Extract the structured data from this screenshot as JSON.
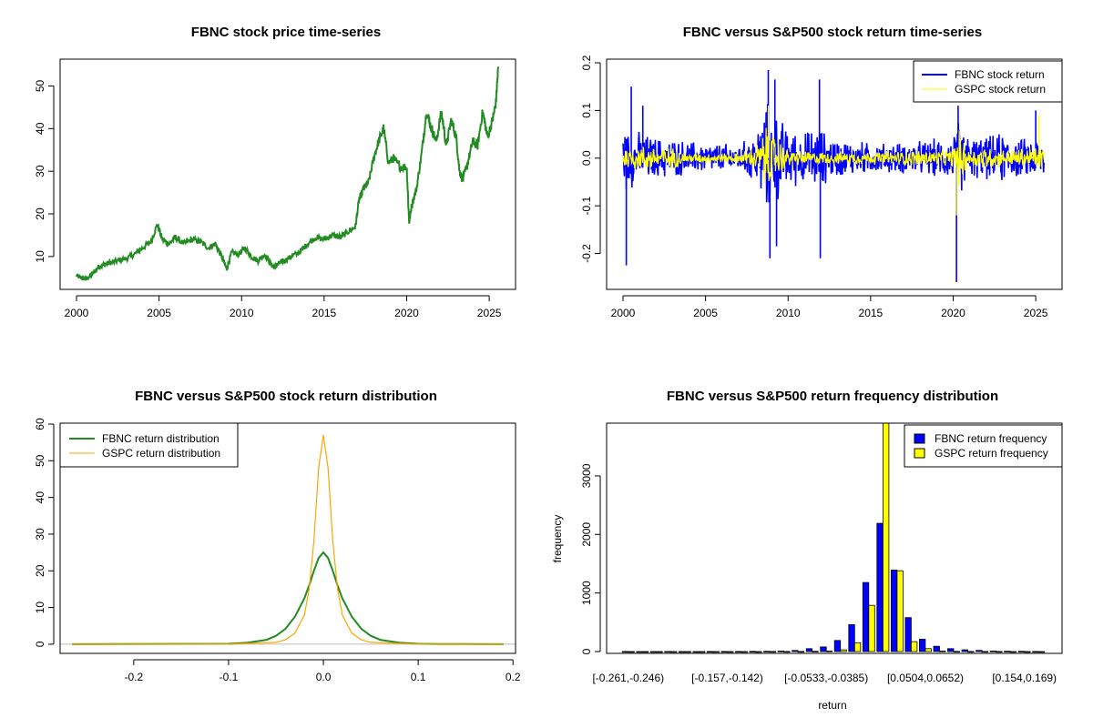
{
  "chart_data": [
    {
      "id": "price",
      "type": "line",
      "title": "FBNC stock price time-series",
      "xlabel": "",
      "ylabel": "",
      "xlim": [
        2000,
        2025.6
      ],
      "ylim": [
        4,
        55
      ],
      "xticks": [
        2000,
        2005,
        2010,
        2015,
        2020,
        2025
      ],
      "yticks": [
        10,
        20,
        30,
        40,
        50
      ],
      "grid": false,
      "colors": {
        "line": "#228B22"
      },
      "series": [
        {
          "x": [
            2000.0,
            2000.3,
            2000.6,
            2001.0,
            2001.3,
            2001.6,
            2002.0,
            2002.5,
            2003.0,
            2003.5,
            2004.0,
            2004.5,
            2004.9,
            2005.2,
            2005.6,
            2006.0,
            2006.5,
            2007.0,
            2007.5,
            2008.0,
            2008.4,
            2008.8,
            2009.1,
            2009.4,
            2009.8,
            2010.2,
            2010.6,
            2011.0,
            2011.4,
            2011.8,
            2012.0,
            2012.3,
            2012.6,
            2013.0,
            2013.5,
            2014.0,
            2014.5,
            2015.0,
            2015.5,
            2016.0,
            2016.5,
            2016.9,
            2017.1,
            2017.4,
            2017.7,
            2018.0,
            2018.3,
            2018.6,
            2018.9,
            2019.2,
            2019.6,
            2020.0,
            2020.15,
            2020.3,
            2020.6,
            2020.9,
            2021.2,
            2021.5,
            2021.8,
            2022.1,
            2022.4,
            2022.7,
            2023.0,
            2023.2,
            2023.4,
            2023.7,
            2024.0,
            2024.3,
            2024.6,
            2024.9,
            2025.2,
            2025.4,
            2025.55
          ],
          "y": [
            5.5,
            5.0,
            4.8,
            6.0,
            7.5,
            8.0,
            8.5,
            9.0,
            9.5,
            10.5,
            12.0,
            13.5,
            17.5,
            14.0,
            13.0,
            14.5,
            13.0,
            14.0,
            13.5,
            12.0,
            13.0,
            10.0,
            7.0,
            11.0,
            10.5,
            12.0,
            10.0,
            9.0,
            10.5,
            8.0,
            7.5,
            8.5,
            9.0,
            10.0,
            11.0,
            13.0,
            14.5,
            14.0,
            15.0,
            14.5,
            16.0,
            17.0,
            23.0,
            26.0,
            27.5,
            33.0,
            37.0,
            40.0,
            32.0,
            33.0,
            31.0,
            31.0,
            18.0,
            22.0,
            26.0,
            34.0,
            44.0,
            40.0,
            37.0,
            44.0,
            36.0,
            42.0,
            38.0,
            30.0,
            28.0,
            32.0,
            37.0,
            36.0,
            44.0,
            38.0,
            42.0,
            46.0,
            54.5
          ]
        }
      ]
    },
    {
      "id": "returns",
      "type": "line",
      "title": "FBNC versus S&P500 stock return time-series",
      "xlabel": "",
      "ylabel": "",
      "xlim": [
        2000,
        2025.6
      ],
      "ylim": [
        -0.26,
        0.2
      ],
      "xticks": [
        2000,
        2005,
        2010,
        2015,
        2020,
        2025
      ],
      "yticks": [
        -0.2,
        -0.1,
        0.0,
        0.1,
        0.2
      ],
      "ytick_labels": [
        "-0.2",
        "-0.1",
        "0.0",
        "0.1",
        "0.2"
      ],
      "grid": false,
      "legend": {
        "position": "top-right"
      },
      "series": [
        {
          "name": "FBNC stock return",
          "color": "#0000FF",
          "amplitude_profile": {
            "x": [
              2000,
              2001,
              2002,
              2003,
              2004,
              2005,
              2006,
              2007,
              2008,
              2008.7,
              2009.2,
              2010,
              2011,
              2011.8,
              2012.5,
              2014,
              2016,
              2018,
              2019.9,
              2020.3,
              2021,
              2022,
              2023,
              2024,
              2025.5
            ],
            "y": [
              0.08,
              0.06,
              0.05,
              0.045,
              0.04,
              0.035,
              0.035,
              0.03,
              0.06,
              0.13,
              0.11,
              0.07,
              0.06,
              0.08,
              0.05,
              0.04,
              0.035,
              0.04,
              0.05,
              0.09,
              0.05,
              0.05,
              0.06,
              0.045,
              0.05
            ]
          },
          "spikes": [
            {
              "x": 2000.2,
              "y": -0.225
            },
            {
              "x": 2000.5,
              "y": 0.15
            },
            {
              "x": 2001.2,
              "y": 0.11
            },
            {
              "x": 2008.8,
              "y": 0.185
            },
            {
              "x": 2008.9,
              "y": -0.21
            },
            {
              "x": 2009.2,
              "y": 0.165
            },
            {
              "x": 2009.3,
              "y": -0.185
            },
            {
              "x": 2011.9,
              "y": 0.165
            },
            {
              "x": 2011.95,
              "y": -0.21
            },
            {
              "x": 2020.2,
              "y": -0.26
            },
            {
              "x": 2020.3,
              "y": 0.11
            },
            {
              "x": 2025.0,
              "y": 0.1
            }
          ]
        },
        {
          "name": "GSPC stock return",
          "color": "#FFFF00",
          "amplitude_profile": {
            "x": [
              2000,
              2002,
              2003,
              2004,
              2007,
              2008,
              2008.8,
              2009.3,
              2010,
              2012,
              2015,
              2018,
              2019.9,
              2020.3,
              2021,
              2022,
              2023,
              2025.5
            ],
            "y": [
              0.03,
              0.03,
              0.025,
              0.012,
              0.012,
              0.03,
              0.08,
              0.05,
              0.02,
              0.015,
              0.015,
              0.02,
              0.02,
              0.07,
              0.02,
              0.03,
              0.02,
              0.03
            ]
          },
          "spikes": [
            {
              "x": 2020.2,
              "y": -0.12
            },
            {
              "x": 2025.2,
              "y": 0.09
            },
            {
              "x": 2008.8,
              "y": 0.11
            }
          ]
        }
      ]
    },
    {
      "id": "density",
      "type": "line",
      "title": "FBNC versus S&P500 stock return distribution",
      "xlabel": "",
      "ylabel": "",
      "xlim": [
        -0.27,
        0.195
      ],
      "ylim": [
        -2,
        60
      ],
      "xticks": [
        -0.2,
        -0.1,
        0.0,
        0.1,
        0.2
      ],
      "xtick_labels": [
        "-0.2",
        "-0.1",
        "0.0",
        "0.1",
        "0.2"
      ],
      "yticks": [
        0,
        10,
        20,
        30,
        40,
        50,
        60
      ],
      "grid": false,
      "legend": {
        "position": "top-left"
      },
      "series": [
        {
          "name": "FBNC return distribution",
          "color": "#228B22",
          "x": [
            -0.265,
            -0.1,
            -0.08,
            -0.06,
            -0.05,
            -0.04,
            -0.03,
            -0.02,
            -0.015,
            -0.01,
            -0.005,
            0.0,
            0.005,
            0.01,
            0.015,
            0.02,
            0.03,
            0.04,
            0.05,
            0.06,
            0.08,
            0.1,
            0.12,
            0.19
          ],
          "y": [
            0.0,
            0.1,
            0.4,
            1.2,
            2.3,
            4.2,
            7.5,
            12.5,
            16.0,
            20.0,
            23.5,
            25.0,
            23.5,
            20.0,
            16.0,
            12.5,
            7.5,
            4.2,
            2.3,
            1.2,
            0.4,
            0.1,
            0.05,
            0.0
          ]
        },
        {
          "name": "GSPC return distribution",
          "color": "#FFA500",
          "x": [
            -0.265,
            -0.1,
            -0.05,
            -0.04,
            -0.03,
            -0.02,
            -0.015,
            -0.01,
            -0.005,
            0.0,
            0.005,
            0.01,
            0.015,
            0.02,
            0.03,
            0.04,
            0.05,
            0.1,
            0.19
          ],
          "y": [
            0.0,
            0.0,
            0.5,
            1.2,
            3.0,
            8.0,
            15.0,
            28.0,
            48.0,
            57.0,
            48.0,
            28.0,
            15.0,
            8.0,
            3.0,
            1.2,
            0.5,
            0.0,
            0.0
          ]
        }
      ]
    },
    {
      "id": "histogram",
      "type": "bar",
      "title": "FBNC versus S&P500 return frequency distribution",
      "xlabel": "return",
      "ylabel": "frequency",
      "ylim": [
        0,
        3900
      ],
      "yticks": [
        0,
        1000,
        2000,
        3000
      ],
      "grid": false,
      "legend": {
        "position": "top-right"
      },
      "bin_count": 30,
      "xtick_labels": [
        {
          "bin": 0,
          "label": "[-0.261,-0.246)"
        },
        {
          "bin": 7,
          "label": "[-0.157,-0.142)"
        },
        {
          "bin": 14,
          "label": "[-0.0533,-0.0385)"
        },
        {
          "bin": 21,
          "label": "[0.0504,0.0652)"
        },
        {
          "bin": 28,
          "label": "[0.154,0.169)"
        }
      ],
      "series": [
        {
          "name": "FBNC return frequency",
          "color": "#0000FF",
          "values": [
            1,
            0,
            0,
            1,
            0,
            0,
            1,
            1,
            2,
            3,
            5,
            9,
            18,
            50,
            80,
            190,
            460,
            1180,
            2190,
            1390,
            580,
            210,
            90,
            50,
            30,
            20,
            10,
            6,
            4,
            2
          ]
        },
        {
          "name": "GSPC return frequency",
          "color": "#FFFF00",
          "values": [
            0,
            0,
            0,
            0,
            0,
            0,
            0,
            0,
            0,
            0,
            1,
            1,
            2,
            5,
            10,
            30,
            150,
            790,
            3900,
            1380,
            170,
            50,
            10,
            3,
            2,
            1,
            1,
            0,
            0,
            0
          ]
        }
      ]
    }
  ]
}
